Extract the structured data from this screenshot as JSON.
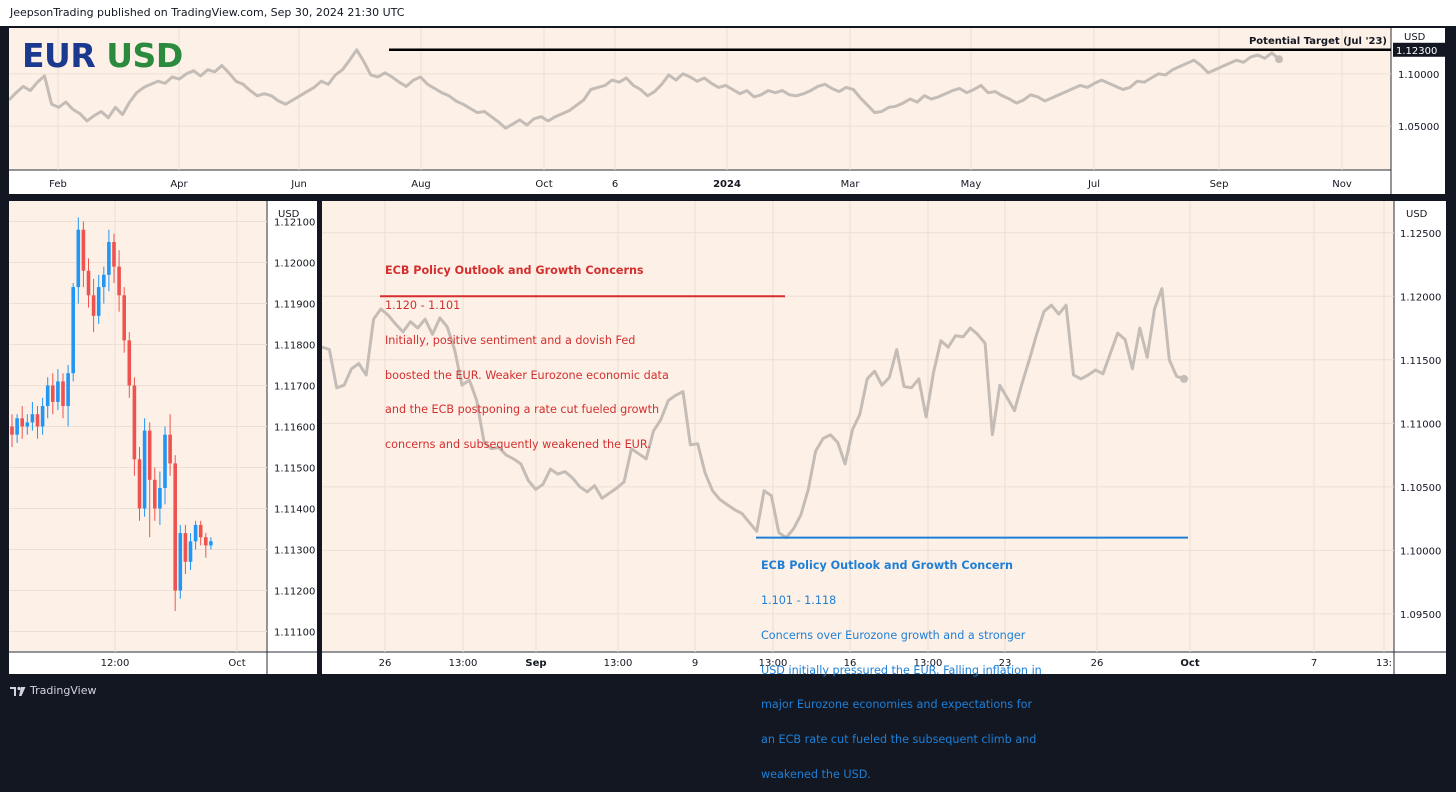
{
  "header": {
    "text": "JeepsonTrading published on TradingView.com, Sep 30, 2024 21:30 UTC"
  },
  "footer": {
    "logo_text": "TradingView",
    "logo_icon": "tradingview-logo-icon"
  },
  "title": {
    "base": "EUR",
    "quote": "USD"
  },
  "colors": {
    "background": "#fdf1e7",
    "frame": "#131722",
    "price_line": "#c4bcb6",
    "up_candle": "#2196f3",
    "down_candle": "#ef5350",
    "red_annotation": "#d32f2f",
    "blue_annotation": "#1e7fd6",
    "target_line": "#000000"
  },
  "chart_data": [
    {
      "type": "line",
      "name": "overview",
      "currency_label": "USD",
      "x_labels": [
        "Feb",
        "Apr",
        "Jun",
        "Aug",
        "Oct",
        "6",
        "2024",
        "Mar",
        "May",
        "Jul",
        "Sep",
        "Nov"
      ],
      "y_ticks": [
        "1.10000",
        "1.05000"
      ],
      "ylim": [
        1.01,
        1.14
      ],
      "values": [
        1.075,
        1.082,
        1.088,
        1.084,
        1.092,
        1.098,
        1.071,
        1.068,
        1.073,
        1.066,
        1.062,
        1.055,
        1.06,
        1.064,
        1.058,
        1.068,
        1.061,
        1.073,
        1.082,
        1.087,
        1.09,
        1.093,
        1.091,
        1.097,
        1.095,
        1.1,
        1.103,
        1.098,
        1.104,
        1.102,
        1.108,
        1.101,
        1.093,
        1.09,
        1.084,
        1.079,
        1.081,
        1.079,
        1.074,
        1.071,
        1.075,
        1.079,
        1.083,
        1.087,
        1.093,
        1.09,
        1.099,
        1.104,
        1.113,
        1.123,
        1.112,
        1.099,
        1.097,
        1.101,
        1.097,
        1.092,
        1.088,
        1.094,
        1.097,
        1.09,
        1.086,
        1.082,
        1.079,
        1.074,
        1.071,
        1.067,
        1.063,
        1.064,
        1.059,
        1.054,
        1.048,
        1.052,
        1.056,
        1.051,
        1.057,
        1.059,
        1.055,
        1.059,
        1.062,
        1.065,
        1.07,
        1.075,
        1.085,
        1.087,
        1.089,
        1.094,
        1.092,
        1.096,
        1.089,
        1.085,
        1.079,
        1.083,
        1.09,
        1.099,
        1.094,
        1.1,
        1.097,
        1.093,
        1.096,
        1.091,
        1.087,
        1.089,
        1.085,
        1.081,
        1.084,
        1.078,
        1.08,
        1.084,
        1.082,
        1.084,
        1.08,
        1.079,
        1.081,
        1.084,
        1.088,
        1.09,
        1.086,
        1.083,
        1.087,
        1.085,
        1.077,
        1.07,
        1.063,
        1.064,
        1.068,
        1.069,
        1.072,
        1.076,
        1.073,
        1.079,
        1.076,
        1.078,
        1.081,
        1.084,
        1.086,
        1.082,
        1.085,
        1.089,
        1.082,
        1.083,
        1.079,
        1.076,
        1.072,
        1.075,
        1.08,
        1.078,
        1.074,
        1.077,
        1.08,
        1.083,
        1.086,
        1.089,
        1.087,
        1.091,
        1.094,
        1.091,
        1.088,
        1.085,
        1.087,
        1.093,
        1.092,
        1.096,
        1.1,
        1.099,
        1.104,
        1.107,
        1.11,
        1.113,
        1.108,
        1.101,
        1.104,
        1.107,
        1.11,
        1.113,
        1.111,
        1.116,
        1.118,
        1.115,
        1.12,
        1.114
      ],
      "target_level": 1.123,
      "target_value_label": "1.12300",
      "target_annotation": "Potential Target (Jul '23)"
    },
    {
      "type": "candlestick",
      "name": "intraday",
      "currency_label": "USD",
      "x_labels": [
        "12:00",
        "Oct"
      ],
      "y_ticks": [
        "1.12100",
        "1.12000",
        "1.11900",
        "1.11800",
        "1.11700",
        "1.11600",
        "1.11500",
        "1.11400",
        "1.11300",
        "1.11200",
        "1.11100"
      ],
      "ylim": [
        1.1105,
        1.1215
      ],
      "candles": [
        {
          "o": 1.116,
          "c": 1.1158,
          "h": 1.1163,
          "l": 1.1155
        },
        {
          "o": 1.1158,
          "c": 1.1162,
          "h": 1.1163,
          "l": 1.1156
        },
        {
          "o": 1.1162,
          "c": 1.116,
          "h": 1.1165,
          "l": 1.1157
        },
        {
          "o": 1.116,
          "c": 1.1161,
          "h": 1.1163,
          "l": 1.1158
        },
        {
          "o": 1.1161,
          "c": 1.1163,
          "h": 1.1166,
          "l": 1.1159
        },
        {
          "o": 1.1163,
          "c": 1.116,
          "h": 1.1165,
          "l": 1.1157
        },
        {
          "o": 1.116,
          "c": 1.1165,
          "h": 1.1167,
          "l": 1.1158
        },
        {
          "o": 1.1165,
          "c": 1.117,
          "h": 1.1172,
          "l": 1.1162
        },
        {
          "o": 1.117,
          "c": 1.1166,
          "h": 1.1173,
          "l": 1.1163
        },
        {
          "o": 1.1166,
          "c": 1.1171,
          "h": 1.1174,
          "l": 1.1164
        },
        {
          "o": 1.1171,
          "c": 1.1165,
          "h": 1.1173,
          "l": 1.1162
        },
        {
          "o": 1.1165,
          "c": 1.1173,
          "h": 1.1175,
          "l": 1.116
        },
        {
          "o": 1.1173,
          "c": 1.1194,
          "h": 1.1195,
          "l": 1.1171
        },
        {
          "o": 1.1194,
          "c": 1.1208,
          "h": 1.1211,
          "l": 1.119
        },
        {
          "o": 1.1208,
          "c": 1.1198,
          "h": 1.121,
          "l": 1.1194
        },
        {
          "o": 1.1198,
          "c": 1.1192,
          "h": 1.1201,
          "l": 1.1189
        },
        {
          "o": 1.1192,
          "c": 1.1187,
          "h": 1.1196,
          "l": 1.1183
        },
        {
          "o": 1.1187,
          "c": 1.1194,
          "h": 1.1197,
          "l": 1.1185
        },
        {
          "o": 1.1194,
          "c": 1.1197,
          "h": 1.1199,
          "l": 1.119
        },
        {
          "o": 1.1197,
          "c": 1.1205,
          "h": 1.1208,
          "l": 1.1193
        },
        {
          "o": 1.1205,
          "c": 1.1199,
          "h": 1.1207,
          "l": 1.1195
        },
        {
          "o": 1.1199,
          "c": 1.1192,
          "h": 1.1203,
          "l": 1.1188
        },
        {
          "o": 1.1192,
          "c": 1.1181,
          "h": 1.1194,
          "l": 1.1178
        },
        {
          "o": 1.1181,
          "c": 1.117,
          "h": 1.1183,
          "l": 1.1167
        },
        {
          "o": 1.117,
          "c": 1.1152,
          "h": 1.1172,
          "l": 1.1148
        },
        {
          "o": 1.1152,
          "c": 1.114,
          "h": 1.1155,
          "l": 1.1137
        },
        {
          "o": 1.114,
          "c": 1.1159,
          "h": 1.1162,
          "l": 1.1138
        },
        {
          "o": 1.1159,
          "c": 1.1147,
          "h": 1.1161,
          "l": 1.1133
        },
        {
          "o": 1.1147,
          "c": 1.114,
          "h": 1.115,
          "l": 1.1137
        },
        {
          "o": 1.114,
          "c": 1.1145,
          "h": 1.1149,
          "l": 1.1136
        },
        {
          "o": 1.1145,
          "c": 1.1158,
          "h": 1.116,
          "l": 1.1141
        },
        {
          "o": 1.1158,
          "c": 1.1151,
          "h": 1.1163,
          "l": 1.1148
        },
        {
          "o": 1.1151,
          "c": 1.112,
          "h": 1.1153,
          "l": 1.1115
        },
        {
          "o": 1.112,
          "c": 1.1134,
          "h": 1.1136,
          "l": 1.1118
        },
        {
          "o": 1.1134,
          "c": 1.1127,
          "h": 1.1136,
          "l": 1.1124
        },
        {
          "o": 1.1127,
          "c": 1.1132,
          "h": 1.1134,
          "l": 1.1125
        },
        {
          "o": 1.1132,
          "c": 1.1136,
          "h": 1.1137,
          "l": 1.113
        },
        {
          "o": 1.1136,
          "c": 1.1133,
          "h": 1.1137,
          "l": 1.1131
        },
        {
          "o": 1.1133,
          "c": 1.1131,
          "h": 1.1134,
          "l": 1.1128
        },
        {
          "o": 1.1131,
          "c": 1.1132,
          "h": 1.1133,
          "l": 1.113
        }
      ]
    },
    {
      "type": "line",
      "name": "detail",
      "currency_label": "USD",
      "x_labels": [
        "26",
        "13:00",
        "Sep",
        "13:00",
        "9",
        "13:00",
        "16",
        "13:00",
        "23",
        "26",
        "Oct",
        "7",
        "13:"
      ],
      "y_ticks": [
        "1.12500",
        "1.12000",
        "1.11500",
        "1.11000",
        "1.10500",
        "1.10000",
        "1.09500"
      ],
      "ylim": [
        1.092,
        1.1275
      ],
      "values": [
        1.116,
        1.1158,
        1.1128,
        1.113,
        1.1143,
        1.1147,
        1.1138,
        1.1182,
        1.119,
        1.1185,
        1.1178,
        1.1172,
        1.118,
        1.1175,
        1.1182,
        1.117,
        1.1183,
        1.1176,
        1.1158,
        1.113,
        1.1134,
        1.1118,
        1.1085,
        1.108,
        1.1081,
        1.1075,
        1.1072,
        1.1068,
        1.1055,
        1.1048,
        1.1052,
        1.1064,
        1.106,
        1.1062,
        1.1057,
        1.105,
        1.1046,
        1.1051,
        1.1041,
        1.1045,
        1.1049,
        1.1054,
        1.108,
        1.1076,
        1.1072,
        1.1094,
        1.1103,
        1.1118,
        1.1122,
        1.1125,
        1.1083,
        1.1084,
        1.1061,
        1.1047,
        1.104,
        1.1036,
        1.1032,
        1.1029,
        1.1022,
        1.1015,
        1.1047,
        1.1043,
        1.1014,
        1.101,
        1.1017,
        1.1028,
        1.1048,
        1.1078,
        1.1088,
        1.1091,
        1.1085,
        1.1068,
        1.1095,
        1.1107,
        1.1135,
        1.1141,
        1.113,
        1.1136,
        1.1158,
        1.1129,
        1.1128,
        1.1135,
        1.1105,
        1.114,
        1.1165,
        1.116,
        1.1169,
        1.1168,
        1.1175,
        1.117,
        1.1163,
        1.1091,
        1.113,
        1.112,
        1.111,
        1.1131,
        1.115,
        1.117,
        1.1188,
        1.1193,
        1.1186,
        1.1193,
        1.1138,
        1.1135,
        1.1138,
        1.1142,
        1.1139,
        1.1155,
        1.1171,
        1.1166,
        1.1143,
        1.1175,
        1.1152,
        1.119,
        1.1206,
        1.115,
        1.1137,
        1.1135
      ],
      "annotations": [
        {
          "color": "red",
          "level": 1.12,
          "title": "ECB Policy Outlook and Growth Concerns",
          "range": "1.120 - 1.101",
          "lines": [
            "Initially, positive sentiment and a dovish Fed",
            "boosted the EUR. Weaker Eurozone economic data",
            "and the ECB postponing a rate cut fueled growth",
            "concerns and subsequently weakened the EUR."
          ]
        },
        {
          "color": "blue",
          "level": 1.101,
          "title": "ECB Policy Outlook and Growth Concern",
          "range": "1.101 - 1.118",
          "lines": [
            "Concerns over Eurozone growth and a stronger",
            "USD initially pressured the EUR. Falling inflation in",
            "major Eurozone economies and expectations for",
            "an ECB rate cut fueled the subsequent climb and",
            "weakened the USD."
          ]
        }
      ]
    }
  ]
}
